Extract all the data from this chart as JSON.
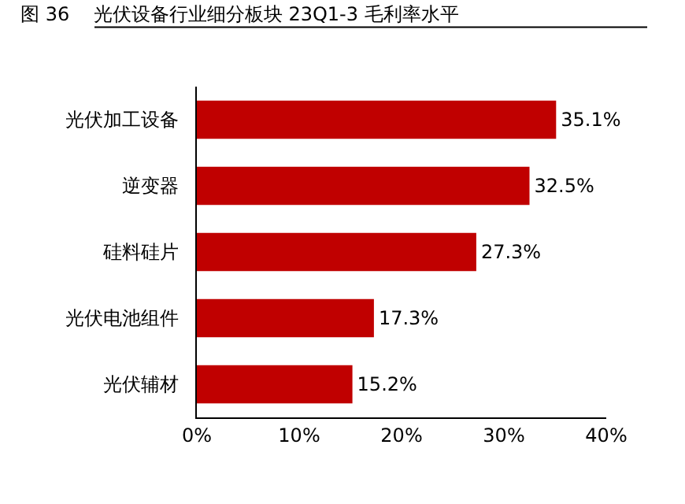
{
  "chart_data": {
    "type": "bar",
    "orientation": "horizontal",
    "title": "图 36    光伏设备行业细分板块 23Q1-3 毛利率水平",
    "categories": [
      "光伏加工设备",
      "逆变器",
      "硅料硅片",
      "光伏电池组件",
      "光伏辅材"
    ],
    "values": [
      35.1,
      32.5,
      27.3,
      17.3,
      15.2
    ],
    "value_labels": [
      "35.1%",
      "32.5%",
      "27.3%",
      "17.3%",
      "15.2%"
    ],
    "color": "#c00000",
    "xlim": [
      0,
      40
    ],
    "xticks": [
      {
        "value": 0,
        "label": "0%"
      },
      {
        "value": 10,
        "label": "10%"
      },
      {
        "value": 20,
        "label": "20%"
      },
      {
        "value": 30,
        "label": "30%"
      },
      {
        "value": 40,
        "label": "40%"
      }
    ],
    "grid": false
  }
}
